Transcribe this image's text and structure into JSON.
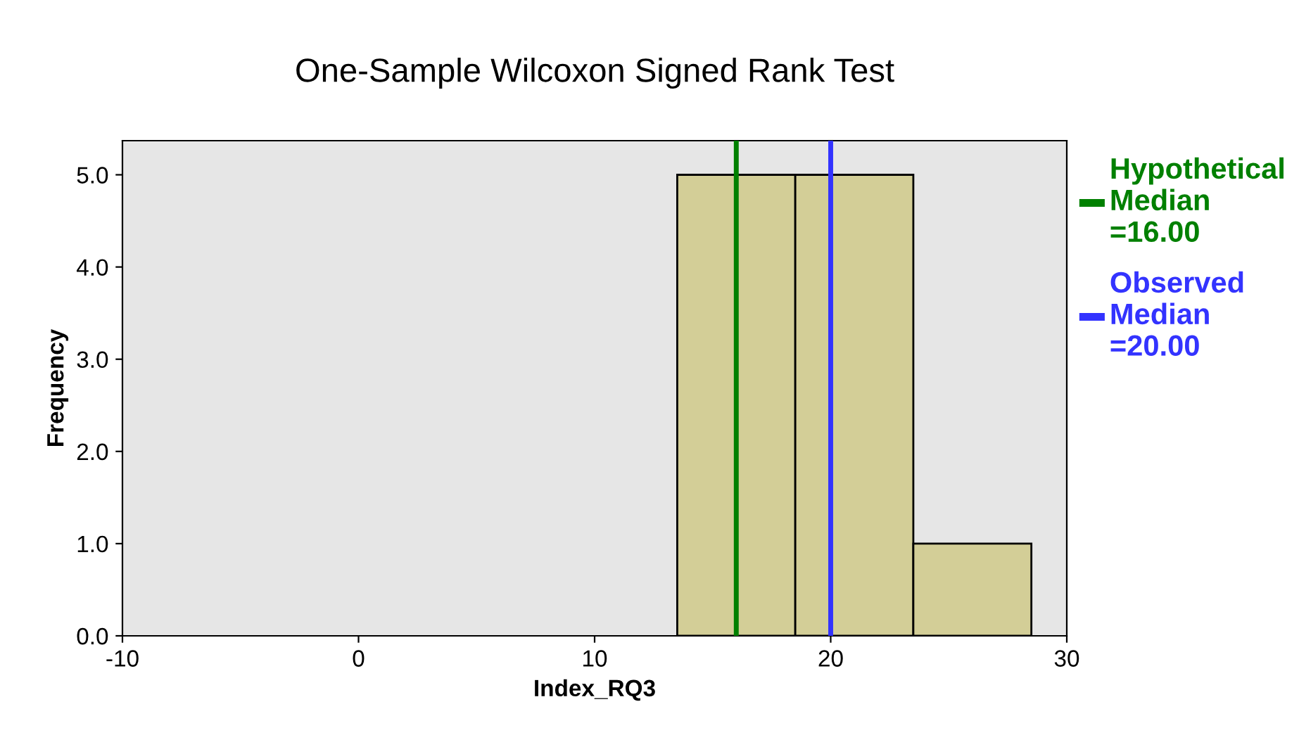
{
  "chart_data": {
    "type": "histogram",
    "title": "One-Sample Wilcoxon Signed Rank Test",
    "xlabel": "Index_RQ3",
    "ylabel": "Frequency",
    "bins": [
      13.5,
      18.5,
      23.5,
      28.5
    ],
    "values": [
      5,
      5,
      1
    ],
    "color": "#d3ce97",
    "xlim": [
      -10,
      30
    ],
    "xticks": [
      -10,
      0,
      10,
      20,
      30
    ],
    "ylim": [
      0,
      5.37
    ],
    "yticks": [
      {
        "value": 0,
        "label": "0.0"
      },
      {
        "value": 1,
        "label": "1.0"
      },
      {
        "value": 2,
        "label": "2.0"
      },
      {
        "value": 3,
        "label": "3.0"
      },
      {
        "value": 4,
        "label": "4.0"
      },
      {
        "value": 5,
        "label": "5.0"
      }
    ],
    "ref_lines": [
      {
        "axis": "x",
        "value": 16,
        "label": "Hypothetical Median =16.00",
        "color": "#008000"
      },
      {
        "axis": "x",
        "value": 20,
        "label": "Observed Median =20.00",
        "color": "#3333ff"
      }
    ],
    "grid": false,
    "legend": "right"
  }
}
